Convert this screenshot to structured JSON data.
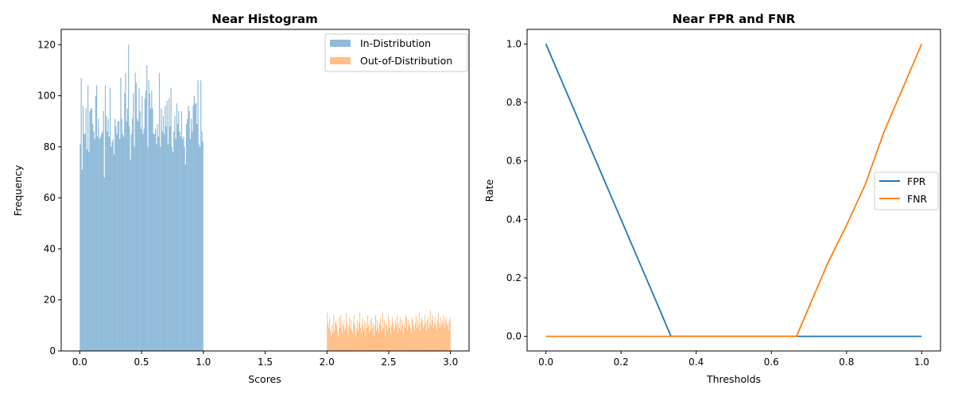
{
  "chart_data": [
    {
      "type": "bar",
      "title": "Near Histogram",
      "xlabel": "Scores",
      "ylabel": "Frequency",
      "xlim": [
        -0.15,
        3.15
      ],
      "ylim": [
        0,
        126
      ],
      "xticks": [
        0.0,
        0.5,
        1.0,
        1.5,
        2.0,
        2.5,
        3.0
      ],
      "xtick_labels": [
        "0.0",
        "0.5",
        "1.0",
        "1.5",
        "2.0",
        "2.5",
        "3.0"
      ],
      "yticks": [
        0,
        20,
        40,
        60,
        80,
        100,
        120
      ],
      "ytick_labels": [
        "0",
        "20",
        "40",
        "60",
        "80",
        "100",
        "120"
      ],
      "grid": false,
      "legend_position": "top-right",
      "series": [
        {
          "name": "In-Distribution",
          "color": "#1f77b4",
          "opacity": 0.5,
          "bin_range": [
            0,
            1
          ],
          "values": [
            81,
            107,
            71,
            96,
            85,
            85,
            95,
            79,
            104,
            78,
            94,
            95,
            95,
            89,
            86,
            83,
            100,
            104,
            84,
            91,
            83,
            84,
            85,
            86,
            94,
            68,
            104,
            92,
            86,
            91,
            84,
            103,
            80,
            82,
            83,
            77,
            91,
            88,
            85,
            90,
            90,
            83,
            107,
            91,
            85,
            84,
            101,
            109,
            90,
            95,
            120,
            88,
            75,
            85,
            91,
            101,
            80,
            109,
            105,
            91,
            90,
            103,
            94,
            87,
            100,
            85,
            87,
            99,
            102,
            112,
            80,
            106,
            101,
            95,
            102,
            95,
            85,
            85,
            87,
            81,
            89,
            84,
            109,
            80,
            95,
            86,
            92,
            85,
            96,
            88,
            98,
            81,
            99,
            88,
            103,
            80,
            78,
            86,
            92,
            83,
            97,
            89,
            94,
            86,
            84,
            94,
            83,
            84,
            80,
            73,
            89,
            91,
            96,
            94,
            83,
            91,
            86,
            96,
            100,
            97,
            97,
            89,
            106,
            81,
            80,
            106,
            86,
            82
          ]
        },
        {
          "name": "Out-of-Distribution",
          "color": "#ff7f0e",
          "opacity": 0.5,
          "bin_range": [
            2,
            3
          ],
          "values": [
            15,
            11,
            9,
            13,
            8,
            6,
            10,
            7,
            14,
            8,
            11,
            12,
            10,
            8,
            6,
            13,
            9,
            14,
            11,
            7,
            10,
            12,
            8,
            9,
            15,
            11,
            6,
            10,
            13,
            9,
            12,
            8,
            7,
            11,
            14,
            10,
            6,
            9,
            12,
            8,
            11,
            15,
            9,
            7,
            13,
            10,
            8,
            12,
            6,
            11,
            9,
            14,
            10,
            7,
            12,
            8,
            13,
            9,
            11,
            6,
            10,
            14,
            8,
            12,
            9,
            7,
            11,
            13,
            10,
            8,
            15,
            9,
            12,
            6,
            11,
            10,
            8,
            14,
            9,
            12,
            7,
            10,
            13,
            11,
            8,
            9,
            12,
            10,
            14,
            7,
            11,
            9,
            13,
            8,
            12,
            10,
            6,
            11,
            9,
            14,
            13,
            8,
            12,
            10,
            11,
            9,
            7,
            13,
            12,
            10,
            8,
            11,
            14,
            9,
            12,
            10,
            15,
            8,
            11,
            13,
            12,
            9,
            10,
            14,
            11,
            8,
            12,
            13,
            9,
            11,
            16,
            10,
            12,
            14,
            9,
            11,
            13,
            10,
            8,
            12,
            15,
            11,
            9,
            13,
            10,
            12,
            11,
            14,
            9,
            12,
            13,
            10,
            11,
            8,
            12,
            13
          ]
        }
      ]
    },
    {
      "type": "line",
      "title": "Near FPR and FNR",
      "xlabel": "Thresholds",
      "ylabel": "Rate",
      "xlim": [
        -0.05,
        1.05
      ],
      "ylim": [
        -0.05,
        1.05
      ],
      "xticks": [
        0.0,
        0.2,
        0.4,
        0.6,
        0.8,
        1.0
      ],
      "xtick_labels": [
        "0.0",
        "0.2",
        "0.4",
        "0.6",
        "0.8",
        "1.0"
      ],
      "yticks": [
        0.0,
        0.2,
        0.4,
        0.6,
        0.8,
        1.0
      ],
      "ytick_labels": [
        "0.0",
        "0.2",
        "0.4",
        "0.6",
        "0.8",
        "1.0"
      ],
      "grid": false,
      "legend_position": "center-right",
      "series": [
        {
          "name": "FPR",
          "color": "#1f77b4",
          "x": [
            0.0,
            0.05,
            0.1,
            0.15,
            0.2,
            0.25,
            0.3,
            0.333,
            0.4,
            0.5,
            0.6,
            0.7,
            0.8,
            0.9,
            1.0
          ],
          "y": [
            1.0,
            0.85,
            0.7,
            0.55,
            0.4,
            0.25,
            0.1,
            0.0,
            0.0,
            0.0,
            0.0,
            0.0,
            0.0,
            0.0,
            0.0
          ]
        },
        {
          "name": "FNR",
          "color": "#ff7f0e",
          "x": [
            0.0,
            0.1,
            0.2,
            0.3,
            0.4,
            0.5,
            0.6,
            0.667,
            0.7,
            0.75,
            0.8,
            0.85,
            0.9,
            0.95,
            1.0
          ],
          "y": [
            0.0,
            0.0,
            0.0,
            0.0,
            0.0,
            0.0,
            0.0,
            0.0,
            0.1,
            0.25,
            0.38,
            0.52,
            0.7,
            0.85,
            1.0
          ]
        }
      ]
    }
  ]
}
